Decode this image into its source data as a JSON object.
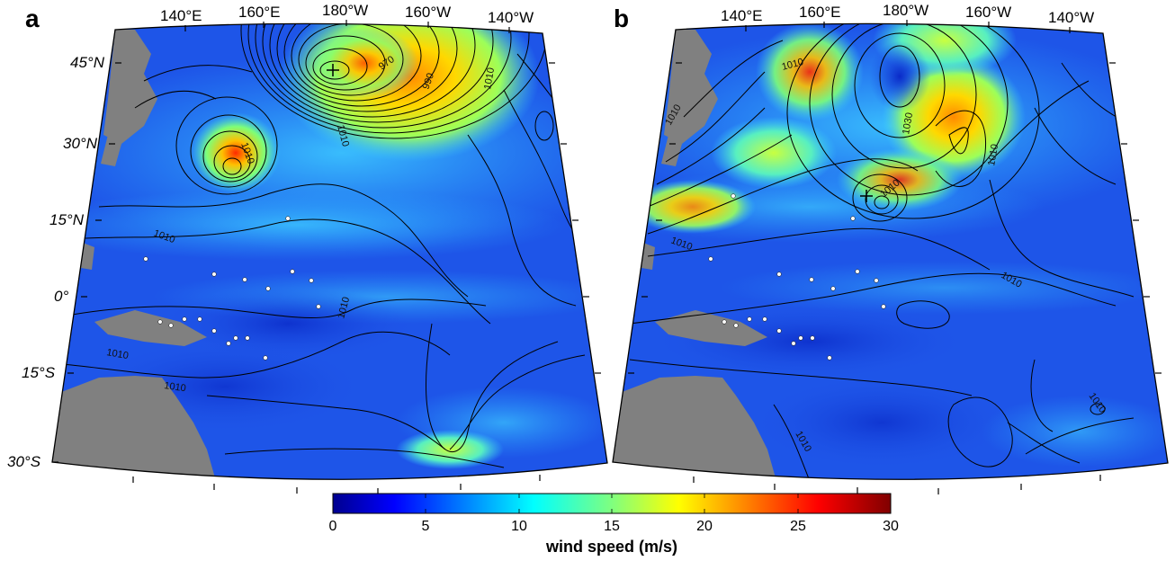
{
  "panels": [
    {
      "letter": "a",
      "lon_labels": [
        "140°E",
        "160°E",
        "180°W",
        "160°W",
        "140°W"
      ],
      "lat_labels": [
        "45°N",
        "30°N",
        "15°N",
        "0°",
        "15°S",
        "30°S"
      ],
      "contour_labels": [
        "970",
        "990",
        "1010",
        "1010",
        "1010",
        "1010",
        "1010",
        "1010",
        "1010"
      ]
    },
    {
      "letter": "b",
      "lon_labels": [
        "140°E",
        "160°E",
        "180°W",
        "160°W",
        "140°W"
      ],
      "lat_labels": [],
      "contour_labels": [
        "1010",
        "1030",
        "1010",
        "1010",
        "1010",
        "1010",
        "1010",
        "1010",
        "1010"
      ]
    }
  ],
  "colorbar": {
    "ticks": [
      "0",
      "5",
      "10",
      "15",
      "20",
      "25",
      "30"
    ],
    "range": [
      0,
      30
    ],
    "label": "wind speed (m/s)",
    "colormap": "jet"
  },
  "colors": {
    "land": "#808080",
    "ocean_low": "#1e50e6",
    "ocean_mid": "#2aa8ff",
    "jet_high": "#ffe600",
    "jet_peak": "#e02000",
    "contour": "#000000"
  }
}
